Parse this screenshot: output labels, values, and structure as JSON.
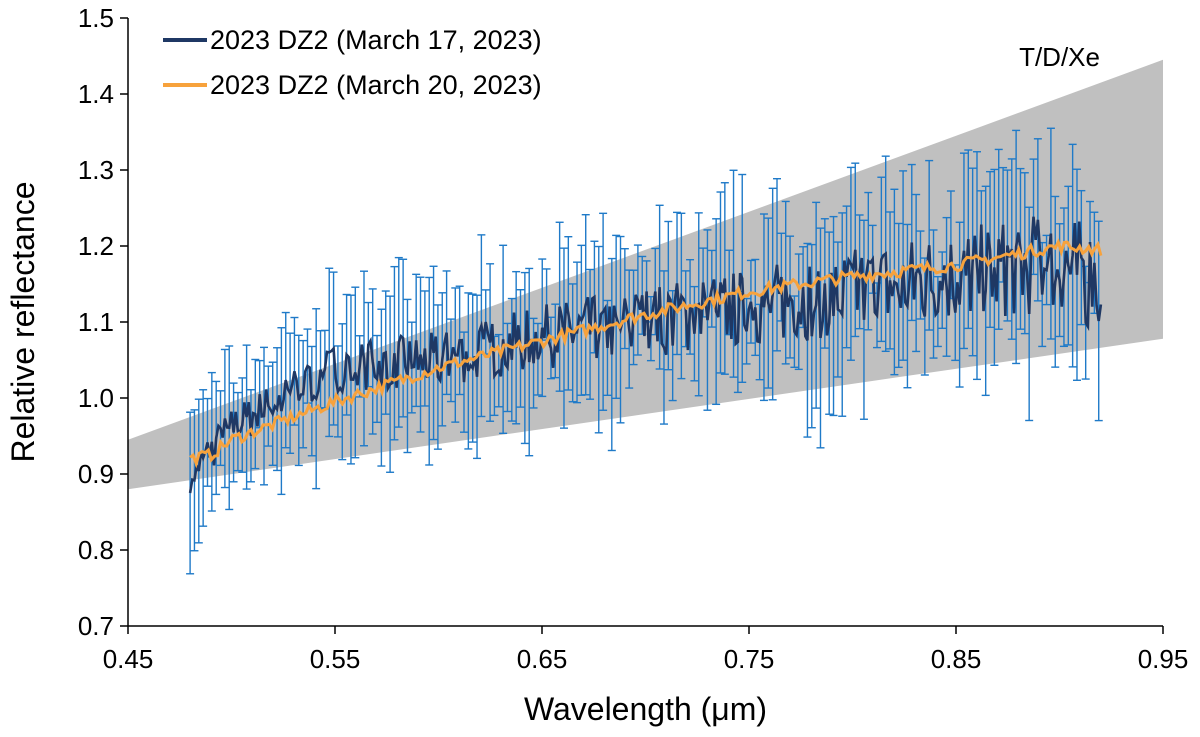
{
  "chart_data": {
    "type": "line",
    "xlabel": "Wavelength (μm)",
    "ylabel": "Relative reflectance",
    "xlim": [
      0.45,
      0.95
    ],
    "ylim": [
      0.7,
      1.5
    ],
    "x_ticks": [
      "0.45",
      "0.55",
      "0.65",
      "0.75",
      "0.85",
      "0.95"
    ],
    "y_ticks": [
      "0.7",
      "0.8",
      "0.9",
      "1.0",
      "1.1",
      "1.2",
      "1.3",
      "1.4",
      "1.5"
    ],
    "grid": false,
    "legend_position": "top-left",
    "band": {
      "label": "T/D/Xe",
      "color": "#c0c0c0",
      "x": [
        0.45,
        0.95
      ],
      "upper": [
        0.945,
        1.445
      ],
      "lower": [
        0.88,
        1.078
      ]
    },
    "series": [
      {
        "name": "2023 DZ2 (March 17, 2023)",
        "color": "#1f3864",
        "errorbar_color": "#1f7ac8",
        "x_range": [
          0.48,
          0.92
        ],
        "anchor_x": [
          0.48,
          0.5,
          0.55,
          0.6,
          0.65,
          0.7,
          0.75,
          0.8,
          0.85,
          0.9,
          0.92
        ],
        "anchor_y": [
          0.9,
          0.96,
          1.04,
          1.05,
          1.08,
          1.1,
          1.12,
          1.14,
          1.16,
          1.18,
          1.15
        ],
        "error_range": [
          0.04,
          0.16
        ]
      },
      {
        "name": "2023 DZ2 (March 20, 2023)",
        "color": "#f7a23c",
        "x_range": [
          0.48,
          0.92
        ],
        "anchor_x": [
          0.48,
          0.49,
          0.5,
          0.55,
          0.6,
          0.65,
          0.7,
          0.75,
          0.8,
          0.85,
          0.9,
          0.92
        ],
        "anchor_y": [
          0.92,
          0.925,
          0.945,
          0.995,
          1.04,
          1.075,
          1.11,
          1.14,
          1.16,
          1.175,
          1.2,
          1.195
        ]
      }
    ]
  }
}
